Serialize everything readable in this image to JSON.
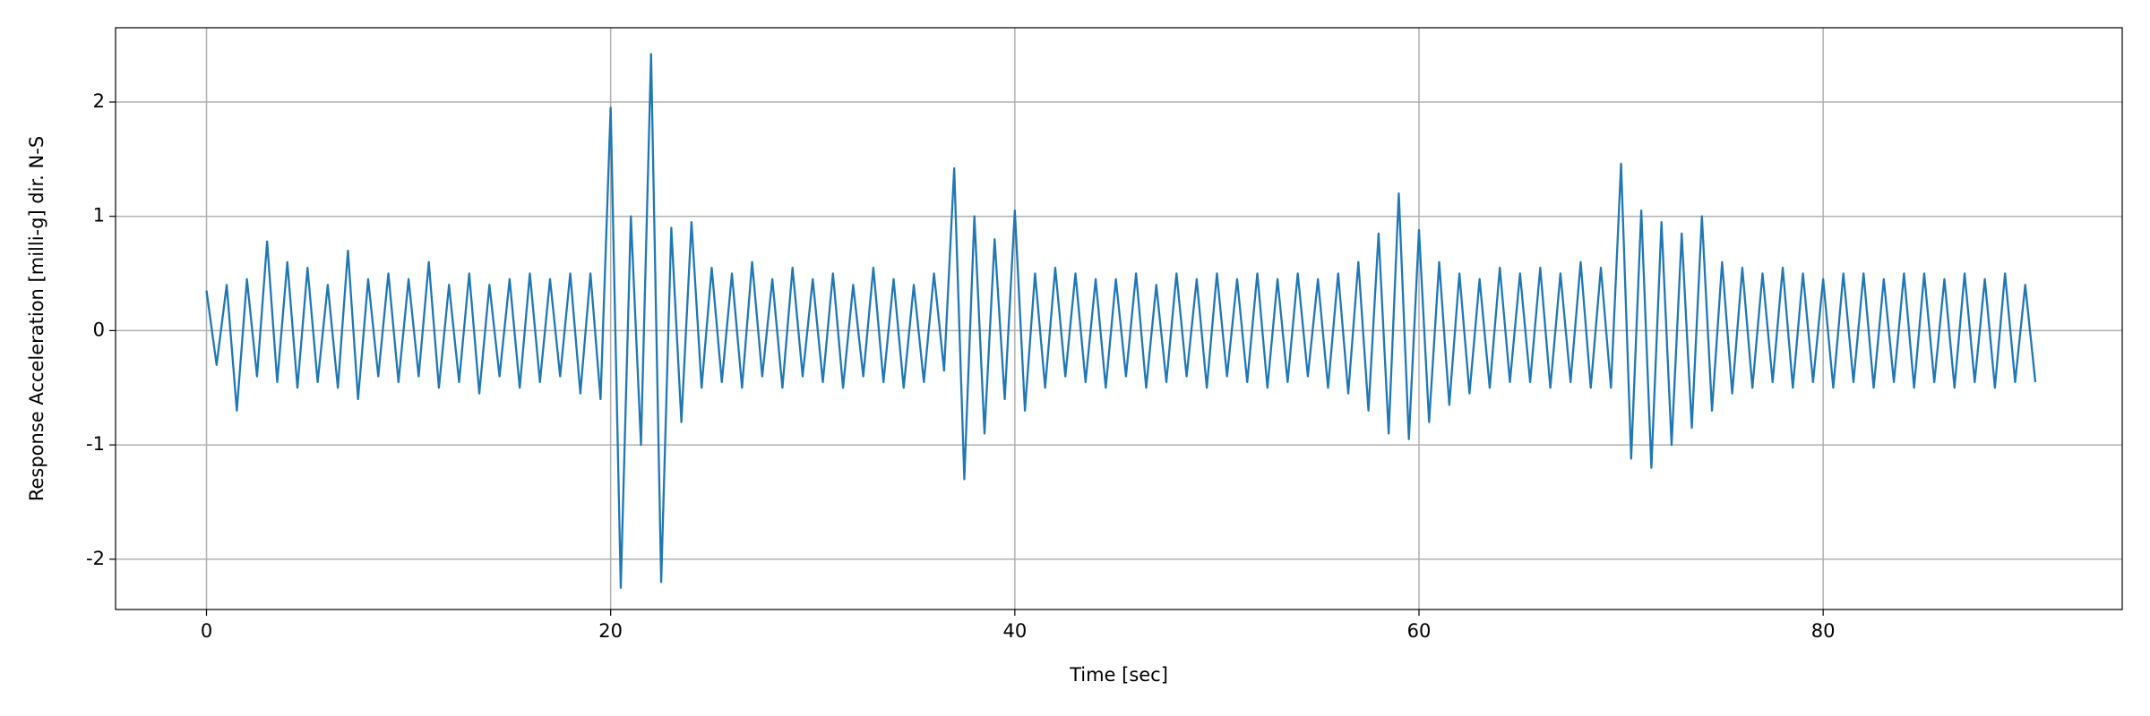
{
  "chart_data": {
    "type": "line",
    "xlabel": "Time [sec]",
    "ylabel": "Response Acceleration [milli-g] dir. N-S",
    "x": [
      0,
      0.5,
      1,
      1.5,
      2,
      2.5,
      3,
      3.5,
      4,
      4.5,
      5,
      5.5,
      6,
      6.5,
      7,
      7.5,
      8,
      8.5,
      9,
      9.5,
      10,
      10.5,
      11,
      11.5,
      12,
      12.5,
      13,
      13.5,
      14,
      14.5,
      15,
      15.5,
      16,
      16.5,
      17,
      17.5,
      18,
      18.5,
      19,
      19.5,
      20,
      20.5,
      21,
      21.5,
      22,
      22.5,
      23,
      23.5,
      24,
      24.5,
      25,
      25.5,
      26,
      26.5,
      27,
      27.5,
      28,
      28.5,
      29,
      29.5,
      30,
      30.5,
      31,
      31.5,
      32,
      32.5,
      33,
      33.5,
      34,
      34.5,
      35,
      35.5,
      36,
      36.5,
      37,
      37.5,
      38,
      38.5,
      39,
      39.5,
      40,
      40.5,
      41,
      41.5,
      42,
      42.5,
      43,
      43.5,
      44,
      44.5,
      45,
      45.5,
      46,
      46.5,
      47,
      47.5,
      48,
      48.5,
      49,
      49.5,
      50,
      50.5,
      51,
      51.5,
      52,
      52.5,
      53,
      53.5,
      54,
      54.5,
      55,
      55.5,
      56,
      56.5,
      57,
      57.5,
      58,
      58.5,
      59,
      59.5,
      60,
      60.5,
      61,
      61.5,
      62,
      62.5,
      63,
      63.5,
      64,
      64.5,
      65,
      65.5,
      66,
      66.5,
      67,
      67.5,
      68,
      68.5,
      69,
      69.5,
      70,
      70.5,
      71,
      71.5,
      72,
      72.5,
      73,
      73.5,
      74,
      74.5,
      75,
      75.5,
      76,
      76.5,
      77,
      77.5,
      78,
      78.5,
      79,
      79.5,
      80,
      80.5,
      81,
      81.5,
      82,
      82.5,
      83,
      83.5,
      84,
      84.5,
      85,
      85.5,
      86,
      86.5,
      87,
      87.5,
      88,
      88.5,
      89,
      89.5,
      90,
      90.5
    ],
    "series": [
      {
        "color": "#1f77b4",
        "values": [
          0.35,
          -0.3,
          0.4,
          -0.7,
          0.45,
          -0.4,
          0.78,
          -0.45,
          0.6,
          -0.5,
          0.55,
          -0.45,
          0.4,
          -0.5,
          0.7,
          -0.6,
          0.45,
          -0.4,
          0.5,
          -0.45,
          0.45,
          -0.4,
          0.6,
          -0.5,
          0.4,
          -0.45,
          0.5,
          -0.55,
          0.4,
          -0.4,
          0.45,
          -0.5,
          0.5,
          -0.45,
          0.45,
          -0.4,
          0.5,
          -0.55,
          0.5,
          -0.6,
          1.95,
          -2.25,
          1.0,
          -1.0,
          2.42,
          -2.2,
          0.9,
          -0.8,
          0.95,
          -0.5,
          0.55,
          -0.45,
          0.5,
          -0.5,
          0.6,
          -0.4,
          0.45,
          -0.5,
          0.55,
          -0.4,
          0.45,
          -0.45,
          0.5,
          -0.5,
          0.4,
          -0.4,
          0.55,
          -0.45,
          0.45,
          -0.5,
          0.4,
          -0.45,
          0.5,
          -0.35,
          1.42,
          -1.3,
          1.0,
          -0.9,
          0.8,
          -0.6,
          1.05,
          -0.7,
          0.5,
          -0.5,
          0.55,
          -0.4,
          0.5,
          -0.45,
          0.45,
          -0.5,
          0.45,
          -0.4,
          0.5,
          -0.5,
          0.4,
          -0.45,
          0.5,
          -0.4,
          0.45,
          -0.5,
          0.5,
          -0.4,
          0.45,
          -0.45,
          0.5,
          -0.5,
          0.45,
          -0.45,
          0.5,
          -0.4,
          0.45,
          -0.5,
          0.5,
          -0.55,
          0.6,
          -0.7,
          0.85,
          -0.9,
          1.2,
          -0.95,
          0.88,
          -0.8,
          0.6,
          -0.65,
          0.5,
          -0.55,
          0.45,
          -0.5,
          0.55,
          -0.45,
          0.5,
          -0.45,
          0.55,
          -0.5,
          0.5,
          -0.45,
          0.6,
          -0.5,
          0.55,
          -0.5,
          1.46,
          -1.12,
          1.05,
          -1.2,
          0.95,
          -1.0,
          0.85,
          -0.85,
          1.0,
          -0.7,
          0.6,
          -0.55,
          0.55,
          -0.5,
          0.5,
          -0.45,
          0.55,
          -0.5,
          0.5,
          -0.45,
          0.45,
          -0.5,
          0.5,
          -0.45,
          0.5,
          -0.5,
          0.45,
          -0.45,
          0.5,
          -0.5,
          0.5,
          -0.45,
          0.45,
          -0.5,
          0.5,
          -0.45,
          0.45,
          -0.5,
          0.5,
          -0.45,
          0.4,
          -0.45
        ]
      }
    ],
    "xlim": [
      -4.5,
      94.8
    ],
    "ylim": [
      -2.44,
      2.65
    ],
    "xticks": [
      0,
      20,
      40,
      60,
      80
    ],
    "yticks": [
      -2,
      -1,
      0,
      1,
      2
    ],
    "grid": true
  }
}
